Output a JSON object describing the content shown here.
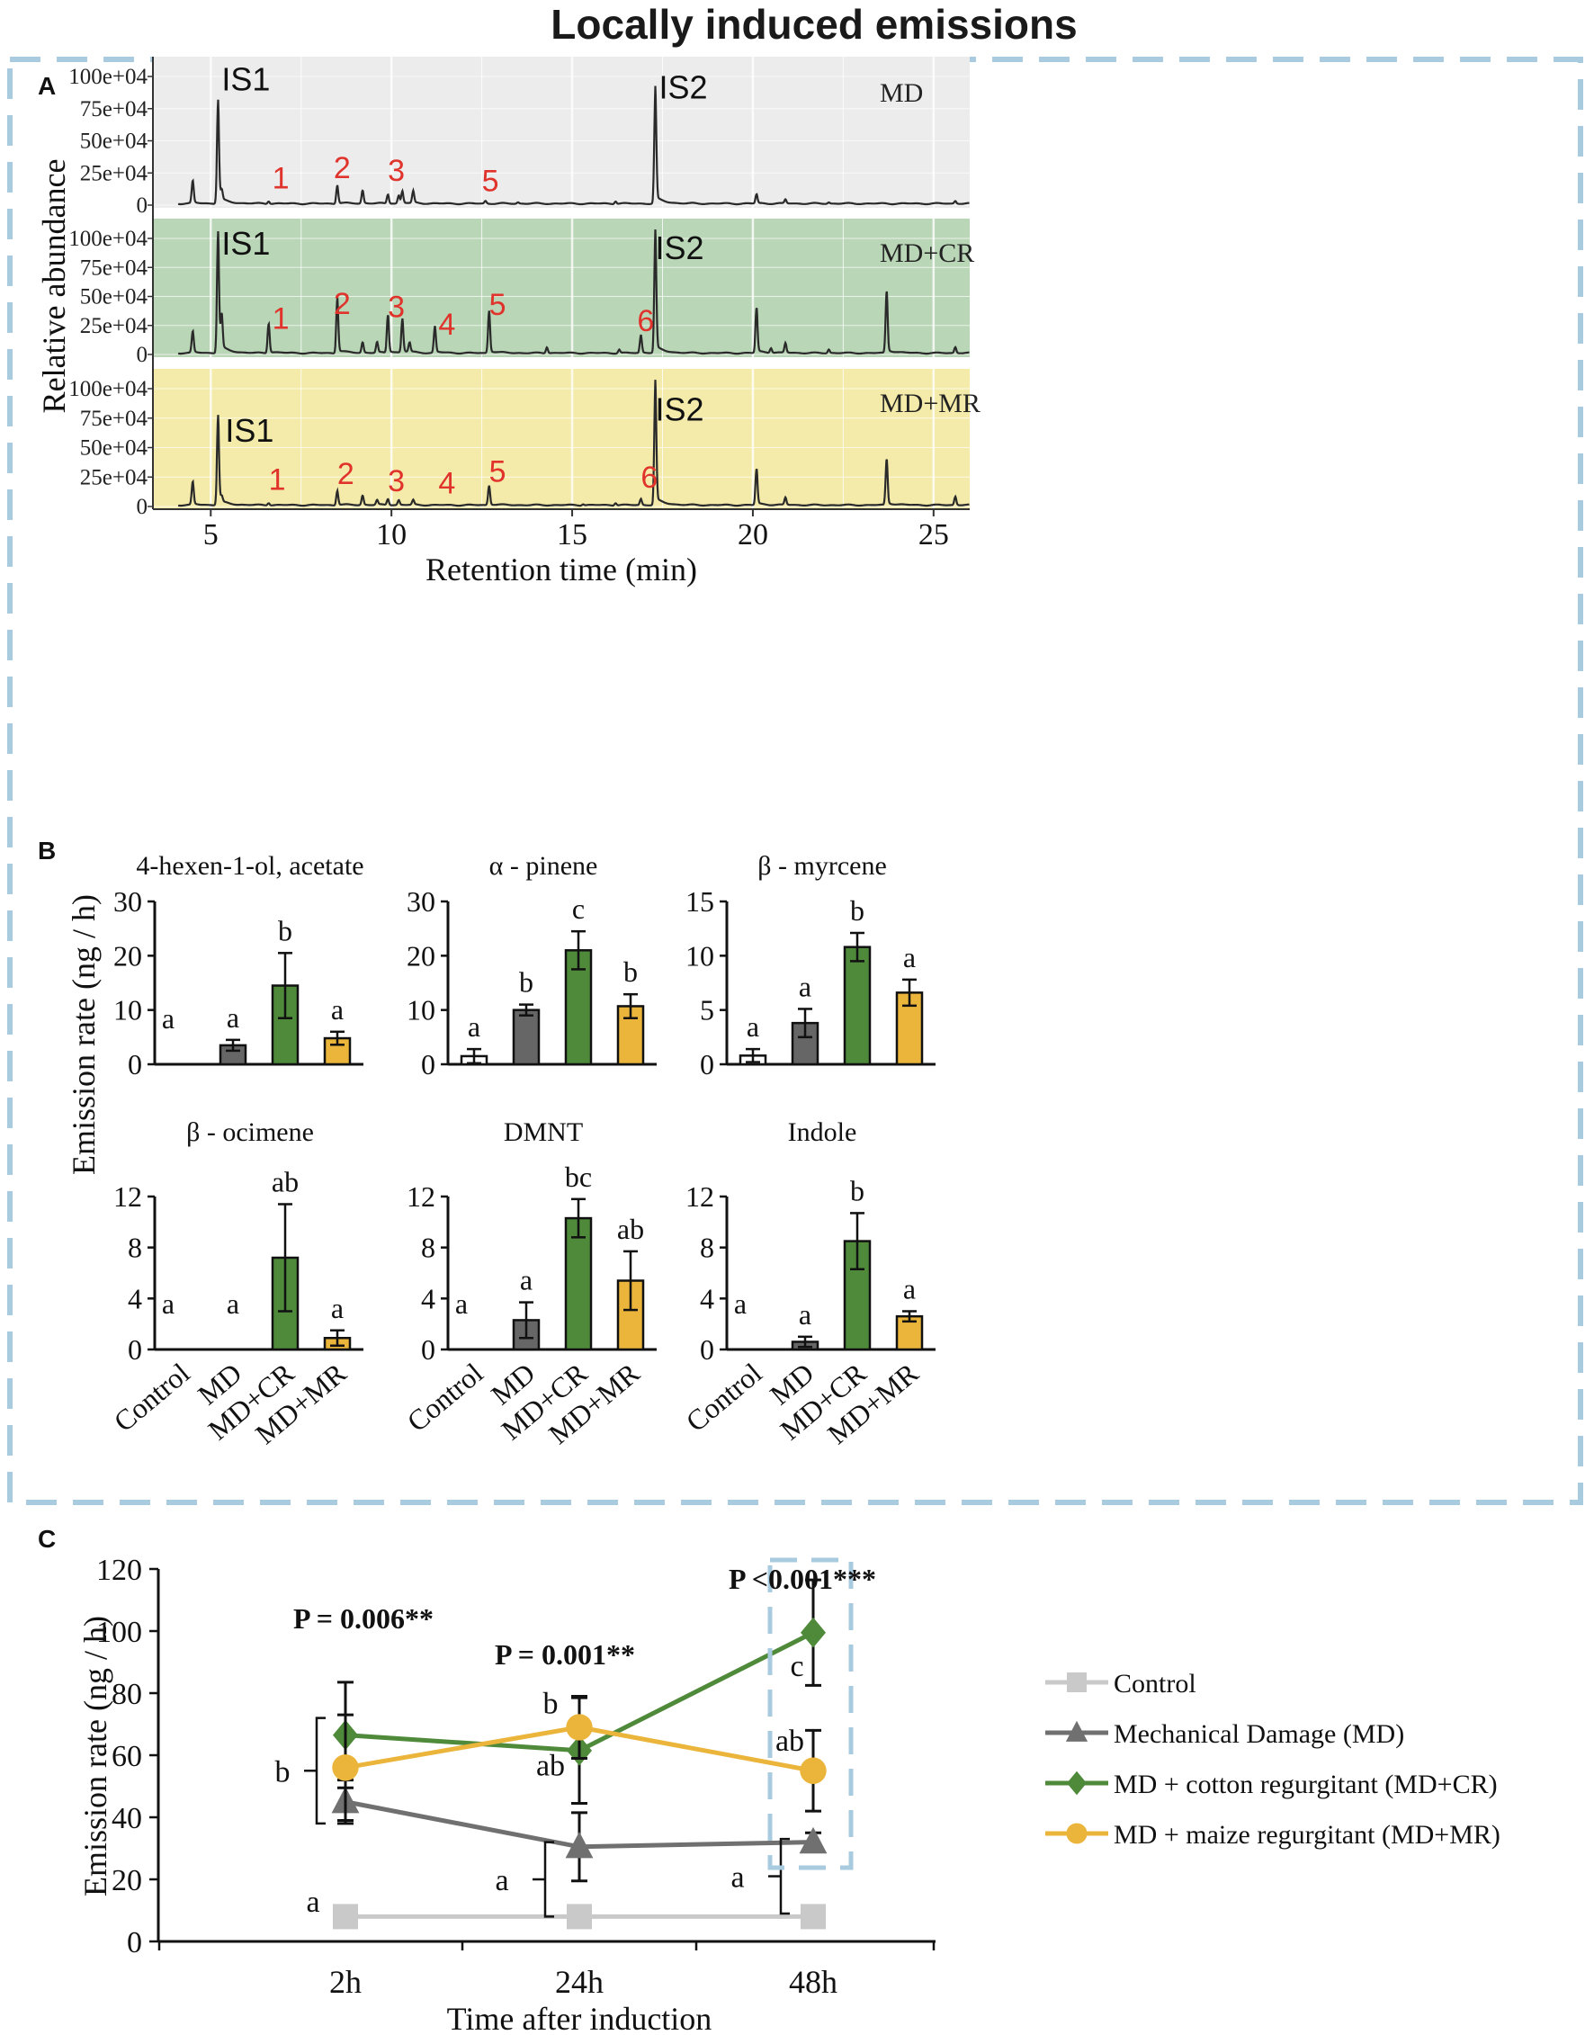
{
  "figure_title": "Locally induced emissions",
  "colors": {
    "frame_dash": "#a9cbe0",
    "md_bg": "#ececec",
    "cr_bg": "#b9d6b6",
    "mr_bg": "#f4ebaa",
    "trace": "#2a2a2a",
    "peak_label": "#e0332c",
    "bar_control": "#ffffff",
    "bar_md": "#666666",
    "bar_cr": "#4f8a3a",
    "bar_mr": "#eab53a",
    "line_control": "#c9c9c9",
    "line_md": "#707070",
    "line_cr": "#4f8a3a",
    "line_mr": "#eab53a"
  },
  "chart_data": [
    {
      "panel": "A",
      "type": "line",
      "xlabel": "Retention time (min)",
      "ylabel": "Relative abundance",
      "xlim": [
        3.4,
        26
      ],
      "xticks": [
        5,
        10,
        15,
        20,
        25
      ],
      "ylim": [
        0,
        100
      ],
      "ytick_labels": [
        "100e+04",
        "75e+04",
        "50e+04",
        "25e+04",
        "0"
      ],
      "ytick_values": [
        100,
        75,
        50,
        25,
        0
      ],
      "series": [
        {
          "name": "MD",
          "peaks": [
            [
              4.5,
              17
            ],
            [
              5.2,
              77
            ],
            [
              5.3,
              8
            ],
            [
              6.6,
              2
            ],
            [
              8.5,
              14
            ],
            [
              9.2,
              10
            ],
            [
              9.9,
              7
            ],
            [
              10.2,
              6
            ],
            [
              10.3,
              9
            ],
            [
              10.6,
              9
            ],
            [
              12.6,
              2
            ],
            [
              13.5,
              1
            ],
            [
              16.2,
              2
            ],
            [
              17.3,
              86
            ],
            [
              20.1,
              7
            ],
            [
              20.9,
              3
            ],
            [
              22.1,
              1
            ],
            [
              25.6,
              2
            ]
          ],
          "labels": [
            {
              "text": "IS1",
              "x": 5.3,
              "y": 89,
              "color": "dark"
            },
            {
              "text": "IS2",
              "x": 17.4,
              "y": 83,
              "color": "dark"
            },
            {
              "text": "1",
              "x": 6.7,
              "y": 13,
              "color": "red"
            },
            {
              "text": "2",
              "x": 8.4,
              "y": 21,
              "color": "red"
            },
            {
              "text": "3",
              "x": 9.9,
              "y": 19,
              "color": "red"
            },
            {
              "text": "5",
              "x": 12.5,
              "y": 11,
              "color": "red"
            }
          ]
        },
        {
          "name": "MD+CR",
          "peaks": [
            [
              4.5,
              18
            ],
            [
              5.2,
              100
            ],
            [
              5.3,
              30
            ],
            [
              6.6,
              25
            ],
            [
              8.5,
              46
            ],
            [
              9.2,
              9
            ],
            [
              9.6,
              9
            ],
            [
              9.9,
              32
            ],
            [
              10.3,
              28
            ],
            [
              10.5,
              8
            ],
            [
              11.2,
              22
            ],
            [
              12.7,
              35
            ],
            [
              14.3,
              5
            ],
            [
              16.3,
              3
            ],
            [
              16.9,
              15
            ],
            [
              17.3,
              100
            ],
            [
              20.1,
              38
            ],
            [
              20.5,
              4
            ],
            [
              20.9,
              8
            ],
            [
              22.1,
              3
            ],
            [
              23.7,
              52
            ],
            [
              25.6,
              5
            ]
          ],
          "labels": [
            {
              "text": "IS1",
              "x": 5.3,
              "y": 86,
              "color": "dark"
            },
            {
              "text": "IS2",
              "x": 17.3,
              "y": 82,
              "color": "dark"
            },
            {
              "text": "1",
              "x": 6.7,
              "y": 22,
              "color": "red"
            },
            {
              "text": "2",
              "x": 8.4,
              "y": 35,
              "color": "red"
            },
            {
              "text": "3",
              "x": 9.9,
              "y": 32,
              "color": "red"
            },
            {
              "text": "4",
              "x": 11.3,
              "y": 17,
              "color": "red"
            },
            {
              "text": "5",
              "x": 12.7,
              "y": 34,
              "color": "red"
            },
            {
              "text": "6",
              "x": 16.8,
              "y": 20,
              "color": "red"
            }
          ]
        },
        {
          "name": "MD+MR",
          "peaks": [
            [
              4.5,
              19
            ],
            [
              5.2,
              73
            ],
            [
              5.3,
              5
            ],
            [
              6.6,
              2
            ],
            [
              8.5,
              12
            ],
            [
              9.2,
              8
            ],
            [
              9.6,
              4
            ],
            [
              9.9,
              5
            ],
            [
              10.2,
              4
            ],
            [
              10.6,
              4
            ],
            [
              12.7,
              16
            ],
            [
              15.3,
              1
            ],
            [
              16.2,
              2
            ],
            [
              16.9,
              5
            ],
            [
              17.3,
              100
            ],
            [
              20.1,
              30
            ],
            [
              20.9,
              6
            ],
            [
              23.7,
              38
            ],
            [
              25.6,
              7
            ]
          ],
          "labels": [
            {
              "text": "IS1",
              "x": 5.4,
              "y": 55,
              "color": "dark"
            },
            {
              "text": "IS2",
              "x": 17.3,
              "y": 73,
              "color": "dark"
            },
            {
              "text": "1",
              "x": 6.6,
              "y": 14,
              "color": "red"
            },
            {
              "text": "2",
              "x": 8.5,
              "y": 19,
              "color": "red"
            },
            {
              "text": "3",
              "x": 9.9,
              "y": 13,
              "color": "red"
            },
            {
              "text": "4",
              "x": 11.3,
              "y": 11,
              "color": "red"
            },
            {
              "text": "5",
              "x": 12.7,
              "y": 21,
              "color": "red"
            },
            {
              "text": "6",
              "x": 16.9,
              "y": 16,
              "color": "red"
            }
          ]
        }
      ]
    },
    {
      "panel": "B",
      "type": "bar",
      "ylabel": "Emission rate (ng / h)",
      "categories": [
        "Control",
        "MD",
        "MD+CR",
        "MD+MR"
      ],
      "subplots": [
        {
          "title": "4-hexen-1-ol, acetate",
          "ymax": 30,
          "yticks": [
            0,
            10,
            20,
            30
          ],
          "values": [
            0,
            3.5,
            14.5,
            4.8
          ],
          "errors": [
            0,
            1,
            6,
            1.2
          ],
          "letters": [
            "a",
            "a",
            "b",
            "a"
          ]
        },
        {
          "title": "α - pinene",
          "ymax": 30,
          "yticks": [
            0,
            10,
            20,
            30
          ],
          "values": [
            1.5,
            10,
            21,
            10.7
          ],
          "errors": [
            1.3,
            1,
            3.5,
            2.2
          ],
          "letters": [
            "a",
            "b",
            "c",
            "b"
          ]
        },
        {
          "title": "β - myrcene",
          "ymax": 15,
          "yticks": [
            0,
            5,
            10,
            15
          ],
          "values": [
            0.8,
            3.8,
            10.8,
            6.6
          ],
          "errors": [
            0.6,
            1.3,
            1.3,
            1.2
          ],
          "letters": [
            "a",
            "a",
            "b",
            "a"
          ]
        },
        {
          "title": "β - ocimene",
          "ymax": 12,
          "yticks": [
            0,
            4,
            8,
            12
          ],
          "values": [
            0,
            0,
            7.2,
            0.9
          ],
          "errors": [
            0,
            0,
            4.2,
            0.6
          ],
          "letters": [
            "a",
            "a",
            "ab",
            "a"
          ]
        },
        {
          "title": "DMNT",
          "ymax": 12,
          "yticks": [
            0,
            4,
            8,
            12
          ],
          "values": [
            0,
            2.3,
            10.3,
            5.4
          ],
          "errors": [
            0,
            1.4,
            1.5,
            2.3
          ],
          "letters": [
            "a",
            "a",
            "bc",
            "ab"
          ]
        },
        {
          "title": "Indole",
          "ymax": 12,
          "yticks": [
            0,
            4,
            8,
            12
          ],
          "values": [
            0,
            0.6,
            8.5,
            2.6
          ],
          "errors": [
            0,
            0.4,
            2.2,
            0.4
          ],
          "letters": [
            "a",
            "a",
            "b",
            "a"
          ]
        }
      ]
    },
    {
      "panel": "C",
      "type": "line",
      "xlabel": "Time after induction",
      "ylabel": "Emission rate (ng / h)",
      "categories": [
        "2h",
        "24h",
        "48h"
      ],
      "ylim": [
        0,
        120
      ],
      "yticks": [
        0,
        20,
        40,
        60,
        80,
        100,
        120
      ],
      "series": [
        {
          "name": "Control",
          "values": [
            8,
            8,
            8
          ],
          "errors": [
            0,
            0,
            0
          ]
        },
        {
          "name": "Mechanical Damage (MD)",
          "values": [
            45,
            30.5,
            32
          ],
          "errors": [
            7,
            11,
            3
          ]
        },
        {
          "name": "MD + cotton regurgitant (MD+CR)",
          "values": [
            66.5,
            61.5,
            99.5
          ],
          "errors": [
            17,
            17,
            17
          ]
        },
        {
          "name": "MD + maize regurgitant (MD+MR)",
          "values": [
            56,
            69,
            55
          ],
          "errors": [
            17,
            10,
            13
          ]
        }
      ],
      "p_values": [
        "P = 0.006**",
        "P = 0.001**",
        "P <0.001***"
      ],
      "letters": [
        {
          "text": "b",
          "x": 0,
          "y": 55
        },
        {
          "text": "a",
          "x": 0,
          "y": 13
        },
        {
          "text": "b",
          "x": 1,
          "y": 77
        },
        {
          "text": "ab",
          "x": 1,
          "y": 57
        },
        {
          "text": "a",
          "x": 1,
          "y": 20
        },
        {
          "text": "c",
          "x": 2,
          "y": 89
        },
        {
          "text": "ab",
          "x": 2,
          "y": 65
        },
        {
          "text": "a",
          "x": 2,
          "y": 21
        }
      ]
    }
  ],
  "panel_labels": [
    "A",
    "B",
    "C"
  ]
}
